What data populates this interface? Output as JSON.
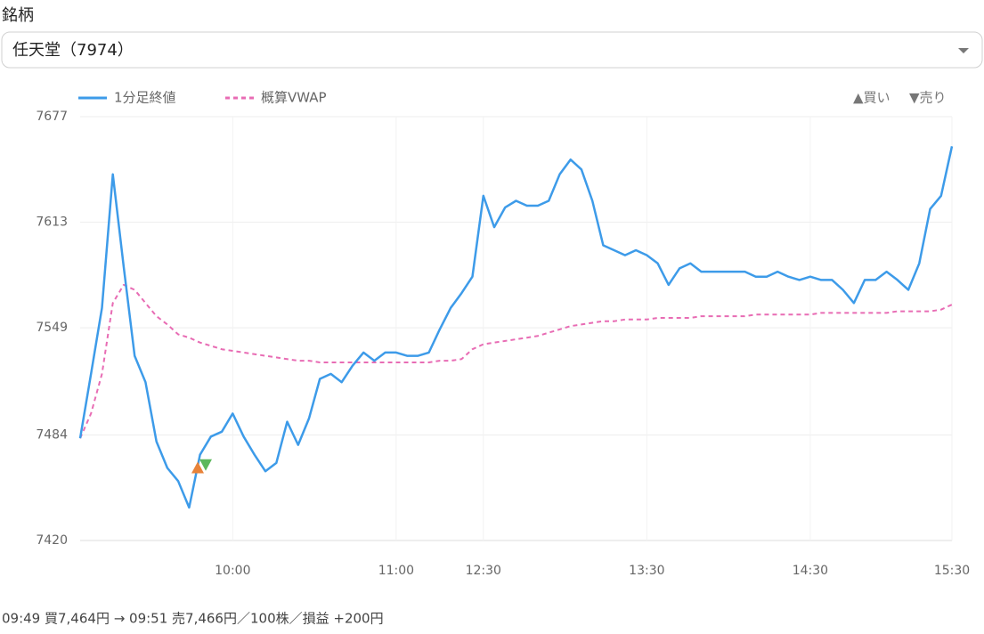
{
  "label": "銘柄",
  "select": {
    "value": "任天堂（7974）"
  },
  "chart_data": {
    "type": "line",
    "categories": [
      null,
      null,
      null,
      null,
      null,
      null,
      null,
      null,
      null,
      null,
      null,
      null,
      null,
      null,
      "10:00",
      null,
      null,
      null,
      null,
      null,
      null,
      null,
      null,
      null,
      null,
      null,
      null,
      null,
      null,
      "11:00",
      null,
      null,
      null,
      null,
      null,
      null,
      null,
      "12:30",
      null,
      null,
      null,
      null,
      null,
      null,
      null,
      null,
      null,
      null,
      null,
      null,
      null,
      null,
      "13:30",
      null,
      null,
      null,
      null,
      null,
      null,
      null,
      null,
      null,
      null,
      null,
      null,
      null,
      null,
      "14:30",
      null,
      null,
      null,
      null,
      null,
      null,
      null,
      null,
      null,
      null,
      null,
      null,
      "15:30"
    ],
    "series": [
      {
        "name": "1分足終値",
        "color": "#3d9be9",
        "dash": false,
        "values": [
          7482,
          7521,
          7561,
          7642,
          7586,
          7532,
          7516,
          7480,
          7464,
          7456,
          7440,
          7472,
          7483,
          7486,
          7497,
          7483,
          7472,
          7462,
          7467,
          7492,
          7478,
          7494,
          7518,
          7521,
          7516,
          7526,
          7534,
          7529,
          7534,
          7534,
          7532,
          7532,
          7534,
          7548,
          7561,
          7570,
          7580,
          7629,
          7610,
          7622,
          7626,
          7623,
          7623,
          7626,
          7642,
          7651,
          7645,
          7626,
          7599,
          7596,
          7593,
          7596,
          7593,
          7588,
          7575,
          7585,
          7588,
          7583,
          7583,
          7583,
          7583,
          7583,
          7580,
          7580,
          7583,
          7580,
          7578,
          7580,
          7578,
          7578,
          7572,
          7564,
          7578,
          7578,
          7583,
          7578,
          7572,
          7588,
          7621,
          7629,
          7659
        ]
      },
      {
        "name": "概算VWAP",
        "color": "#e86cb4",
        "dash": true,
        "values": [
          7482,
          7497,
          7521,
          7564,
          7575,
          7572,
          7564,
          7556,
          7551,
          7545,
          7543,
          7540,
          7538,
          7536,
          7535,
          7534,
          7533,
          7532,
          7531,
          7530,
          7529,
          7529,
          7528,
          7528,
          7528,
          7528,
          7528,
          7528,
          7528,
          7528,
          7528,
          7528,
          7528,
          7529,
          7529,
          7530,
          7536,
          7539,
          7540,
          7541,
          7542,
          7543,
          7544,
          7546,
          7548,
          7550,
          7551,
          7552,
          7553,
          7553,
          7554,
          7554,
          7554,
          7555,
          7555,
          7555,
          7555,
          7556,
          7556,
          7556,
          7556,
          7556,
          7557,
          7557,
          7557,
          7557,
          7557,
          7557,
          7558,
          7558,
          7558,
          7558,
          7558,
          7558,
          7558,
          7559,
          7559,
          7559,
          7559,
          7560,
          7563
        ]
      }
    ],
    "markers": [
      {
        "name": "▲買い",
        "value": 7464,
        "color": "#e8833a",
        "shape": "up"
      },
      {
        "name": "▼売り",
        "value": 7466,
        "color": "#5cb85c",
        "shape": "down"
      }
    ],
    "ylim": [
      7420,
      7677
    ],
    "yticks": [
      7420,
      7484,
      7549,
      7613,
      7677
    ],
    "grid": true
  },
  "footer": "09:49 買7,464円 → 09:51 売7,466円／100株／損益 +200円"
}
